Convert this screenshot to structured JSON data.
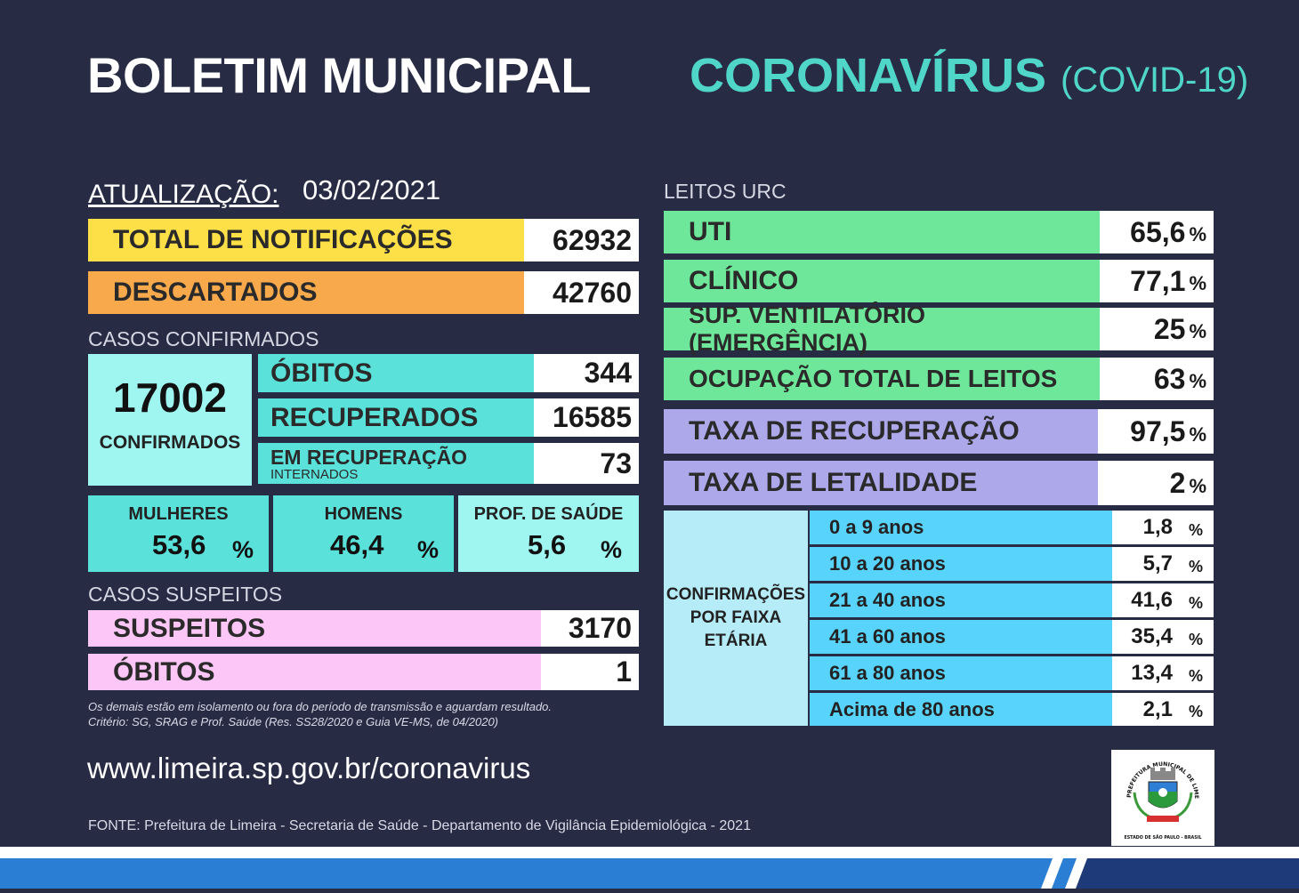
{
  "header": {
    "title": "BOLETIM MUNICIPAL",
    "topic": "CORONAVÍRUS",
    "topic_sub": "(COVID-19)"
  },
  "update": {
    "label": "ATUALIZAÇÃO:",
    "date": "03/02/2021"
  },
  "notifications": {
    "total_label": "TOTAL DE NOTIFICAÇÕES",
    "total_value": "62932",
    "discarded_label": "DESCARTADOS",
    "discarded_value": "42760"
  },
  "confirmed": {
    "section": "CASOS CONFIRMADOS",
    "total": "17002",
    "total_label": "CONFIRMADOS",
    "deaths_label": "ÓBITOS",
    "deaths_value": "344",
    "recovered_label": "RECUPERADOS",
    "recovered_value": "16585",
    "recovering_label": "EM RECUPERAÇÃO",
    "recovering_sub": "INTERNADOS",
    "recovering_value": "73"
  },
  "demographics": [
    {
      "label": "MULHERES",
      "value": "53,6",
      "unit": "%"
    },
    {
      "label": "HOMENS",
      "value": "46,4",
      "unit": "%"
    },
    {
      "label": "PROF. DE SAÚDE",
      "value": "5,6",
      "unit": "%"
    }
  ],
  "suspected": {
    "section": "CASOS SUSPEITOS",
    "suspects_label": "SUSPEITOS",
    "suspects_value": "3170",
    "deaths_label": "ÓBITOS",
    "deaths_value": "1"
  },
  "footnote": {
    "line1": "Os demais estão em isolamento ou fora do período de transmissão e aguardam resultado.",
    "line2": "Critério: SG, SRAG e Prof. Saúde (Res. SS28/2020 e Guia VE-MS, de 04/2020)"
  },
  "website": "www.limeira.sp.gov.br/coronavirus",
  "source": "FONTE: Prefeitura de Limeira - Secretaria de Saúde - Departamento de Vigilância Epidemiológica - 2021",
  "beds": {
    "section": "LEITOS URC",
    "rows": [
      {
        "label": "UTI",
        "value": "65,6",
        "unit": "%"
      },
      {
        "label": "CLÍNICO",
        "value": "77,1",
        "unit": "%"
      },
      {
        "label": "SUP. VENTILATÓRIO (EMERGÊNCIA)",
        "value": "25",
        "unit": "%"
      },
      {
        "label": "OCUPAÇÃO TOTAL DE LEITOS",
        "value": "63",
        "unit": "%"
      }
    ]
  },
  "rates": [
    {
      "label": "TAXA DE RECUPERAÇÃO",
      "value": "97,5",
      "unit": "%"
    },
    {
      "label": "TAXA DE LETALIDADE",
      "value": "2",
      "unit": "%"
    }
  ],
  "age": {
    "title_1": "CONFIRMAÇÕES",
    "title_2": "POR FAIXA",
    "title_3": "ETÁRIA",
    "rows": [
      {
        "label": "0 a 9 anos",
        "value": "1,8",
        "unit": "%"
      },
      {
        "label": "10 a 20 anos",
        "value": "5,7",
        "unit": "%"
      },
      {
        "label": "21 a 40 anos",
        "value": "41,6",
        "unit": "%"
      },
      {
        "label": "41 a 60 anos",
        "value": "35,4",
        "unit": "%"
      },
      {
        "label": "61 a 80 anos",
        "value": "13,4",
        "unit": "%"
      },
      {
        "label": "Acima de 80 anos",
        "value": "2,1",
        "unit": "%"
      }
    ]
  },
  "seal": {
    "arc_text": "PREFEITURA MUNICIPAL DE LIMEIRA",
    "bottom_text": "ESTADO DE SÃO PAULO - BRASIL"
  },
  "colors": {
    "background": "#282b44",
    "accent": "#4fd6c8",
    "bottom_bar": "#2a7fd4"
  }
}
